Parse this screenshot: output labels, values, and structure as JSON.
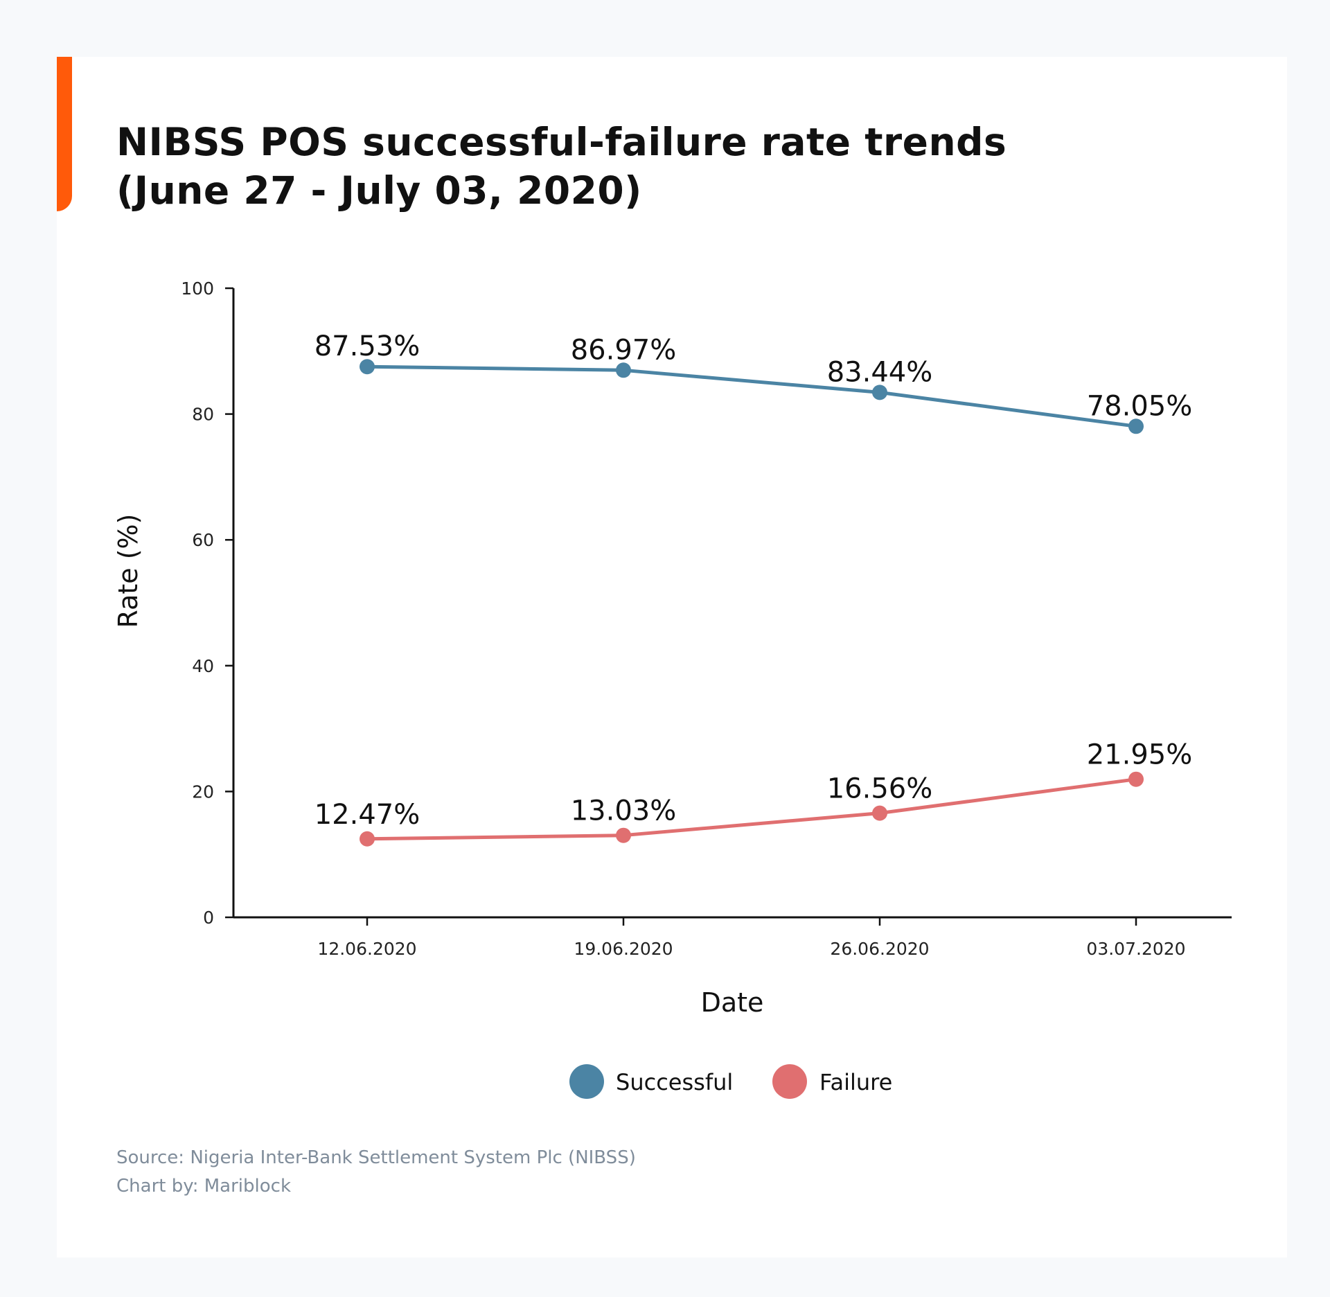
{
  "chart_data": {
    "type": "line",
    "title": "NIBSS POS successful-failure rate trends",
    "subtitle": "(June 27 - July 03, 2020)",
    "xlabel": "Date",
    "ylabel": "Rate (%)",
    "categories": [
      "12.06.2020",
      "19.06.2020",
      "26.06.2020",
      "03.07.2020"
    ],
    "ylim": [
      0,
      100
    ],
    "yticks": [
      0,
      20,
      40,
      60,
      80,
      100
    ],
    "grid": false,
    "legend_placement": "bottom-center",
    "series": [
      {
        "name": "Successful",
        "color": "#4b84a4",
        "values": [
          87.53,
          86.97,
          83.44,
          78.05
        ],
        "labels": [
          "87.53%",
          "86.97%",
          "83.44%",
          "78.05%"
        ]
      },
      {
        "name": "Failure",
        "color": "#e06f70",
        "values": [
          12.47,
          13.03,
          16.56,
          21.95
        ],
        "labels": [
          "12.47%",
          "13.03%",
          "16.56%",
          "21.95%"
        ]
      }
    ]
  },
  "footer": {
    "source": "Source: Nigeria Inter-Bank Settlement System Plc (NIBSS)",
    "credit": "Chart by: Mariblock"
  },
  "colors": {
    "accent": "#ff5a0a"
  }
}
